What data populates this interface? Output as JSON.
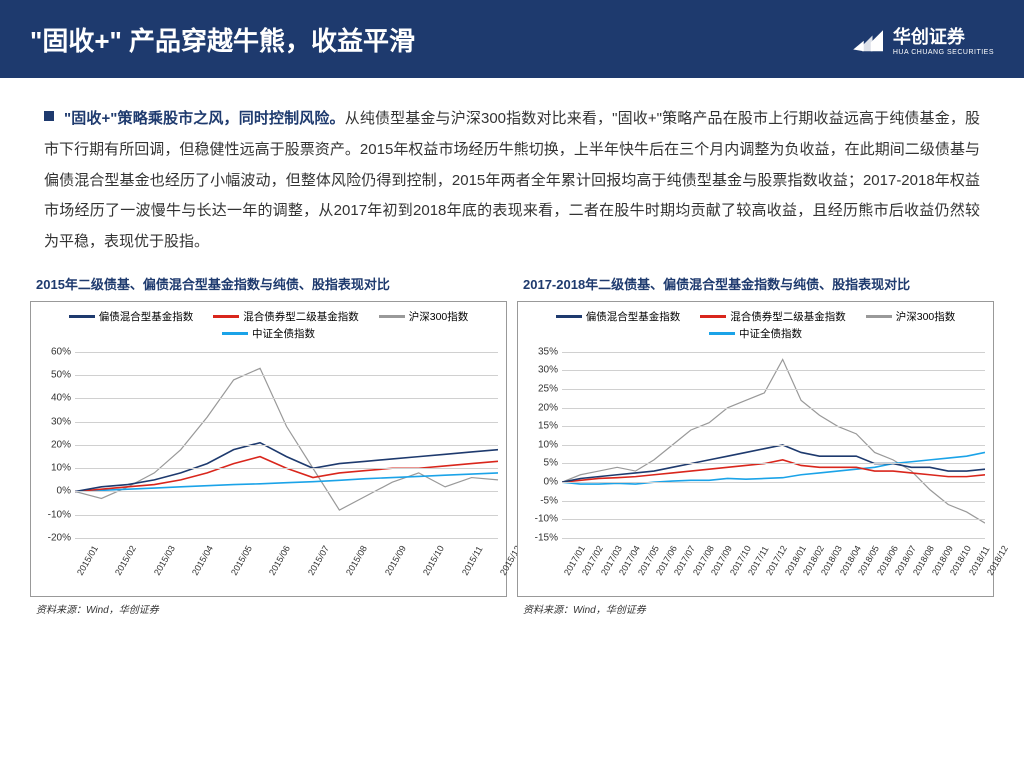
{
  "header": {
    "title": "\"固收+\" 产品穿越牛熊，收益平滑",
    "logo_cn": "华创证券",
    "logo_en": "HUA CHUANG SECURITIES"
  },
  "body": {
    "lead": "\"固收+\"策略乘股市之风，同时控制风险。",
    "text": "从纯债型基金与沪深300指数对比来看，\"固收+\"策略产品在股市上行期收益远高于纯债基金，股市下行期有所回调，但稳健性远高于股票资产。2015年权益市场经历牛熊切换，上半年快牛后在三个月内调整为负收益，在此期间二级债基与偏债混合型基金也经历了小幅波动，但整体风险仍得到控制，2015年两者全年累计回报均高于纯债型基金与股票指数收益；2017-2018年权益市场经历了一波慢牛与长达一年的调整，从2017年初到2018年底的表现来看，二者在股牛时期均贡献了较高收益，且经历熊市后收益仍然较为平稳，表现优于股指。"
  },
  "series_meta": [
    {
      "name": "偏债混合型基金指数",
      "color": "#1e3a6e"
    },
    {
      "name": "混合债券型二级基金指数",
      "color": "#d9261c"
    },
    {
      "name": "沪深300指数",
      "color": "#999999"
    },
    {
      "name": "中证全债指数",
      "color": "#1ba3e8"
    }
  ],
  "chart_left": {
    "title": "2015年二级债基、偏债混合型基金指数与纯债、股指表现对比",
    "ylim": [
      -20,
      60
    ],
    "ytick_step": 10,
    "x_labels": [
      "2015/01",
      "2015/02",
      "2015/03",
      "2015/04",
      "2015/05",
      "2015/06",
      "2015/07",
      "2015/08",
      "2015/09",
      "2015/10",
      "2015/11",
      "2015/12"
    ],
    "series": {
      "pianzhai": [
        0,
        2,
        3,
        5,
        8,
        12,
        18,
        21,
        15,
        10,
        12,
        13,
        14,
        15,
        16,
        17,
        18
      ],
      "hunhe": [
        0,
        1,
        2,
        3,
        5,
        8,
        12,
        15,
        10,
        6,
        8,
        9,
        10,
        10,
        11,
        12,
        13
      ],
      "hs300": [
        0,
        -3,
        2,
        8,
        18,
        32,
        48,
        53,
        28,
        10,
        -8,
        -2,
        4,
        8,
        2,
        6,
        5
      ],
      "zhongzheng": [
        0,
        0.5,
        1,
        1.5,
        2,
        2.5,
        3,
        3.3,
        3.8,
        4.2,
        4.8,
        5.5,
        6,
        6.5,
        7,
        7.5,
        8
      ]
    },
    "line_width": 1.6,
    "hs300_width": 1.2,
    "source": "资料来源：Wind，华创证券"
  },
  "chart_right": {
    "title": "2017-2018年二级债基、偏债混合型基金指数与纯债、股指表现对比",
    "ylim": [
      -15,
      35
    ],
    "ytick_step": 5,
    "x_labels": [
      "2017/01",
      "2017/02",
      "2017/03",
      "2017/04",
      "2017/05",
      "2017/06",
      "2017/07",
      "2017/08",
      "2017/09",
      "2017/10",
      "2017/11",
      "2017/12",
      "2018/01",
      "2018/02",
      "2018/03",
      "2018/04",
      "2018/05",
      "2018/06",
      "2018/07",
      "2018/08",
      "2018/09",
      "2018/10",
      "2018/11",
      "2018/12"
    ],
    "series": {
      "pianzhai": [
        0,
        1,
        1.5,
        2,
        2.5,
        3,
        4,
        5,
        6,
        7,
        8,
        9,
        10,
        8,
        7,
        7,
        7,
        5,
        5,
        4,
        4,
        3,
        3,
        3.5
      ],
      "hunhe": [
        0,
        0.5,
        1,
        1.2,
        1.5,
        2,
        2.5,
        3,
        3.5,
        4,
        4.5,
        5,
        6,
        4.5,
        4,
        4,
        4,
        3,
        3,
        2.5,
        2,
        1.5,
        1.5,
        2
      ],
      "hs300": [
        0,
        2,
        3,
        4,
        3,
        6,
        10,
        14,
        16,
        20,
        22,
        24,
        33,
        22,
        18,
        15,
        13,
        8,
        6,
        3,
        -2,
        -6,
        -8,
        -11
      ],
      "zhongzheng": [
        0,
        -0.5,
        -0.5,
        -0.3,
        -0.5,
        0,
        0.3,
        0.5,
        0.5,
        1,
        0.8,
        1,
        1.2,
        2,
        2.5,
        3,
        3.5,
        4,
        5,
        5.5,
        6,
        6.5,
        7,
        8
      ]
    },
    "line_width": 1.6,
    "hs300_width": 1.2,
    "source": "资料来源：Wind，华创证券"
  }
}
